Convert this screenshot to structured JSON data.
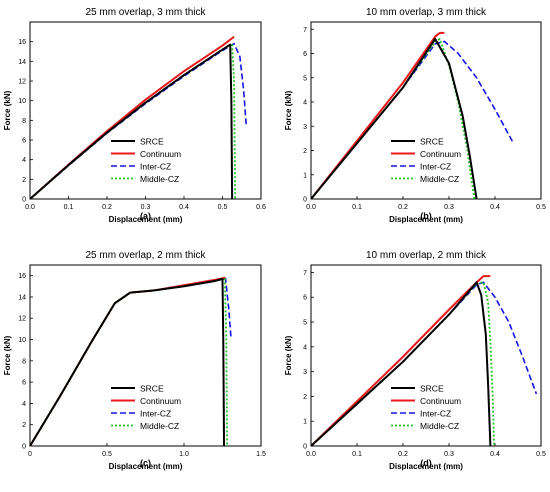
{
  "figure": {
    "panel_labels": [
      "(a)",
      "(b)",
      "(c)",
      "(d)"
    ]
  },
  "legend_colors": {
    "SRCE": "#000000",
    "Continuum": "#e8191b",
    "Inter-CZ": "#1414e6",
    "Middle-CZ": "#22c322"
  },
  "chart_data": [
    {
      "type": "line",
      "title": "25 mm overlap, 3 mm thick",
      "xlabel": "Displacement (mm)",
      "ylabel": "Force (kN)",
      "xlim": [
        0,
        0.6
      ],
      "ylim": [
        0,
        18
      ],
      "xticks": [
        "0.0",
        "0.1",
        "0.2",
        "0.3",
        "0.4",
        "0.5",
        "0.6"
      ],
      "yticks": [
        "0",
        "2",
        "4",
        "6",
        "8",
        "10",
        "12",
        "14",
        "16"
      ],
      "legend_position": "bottom-right",
      "series": [
        {
          "name": "SRCE",
          "style": "solid",
          "points": [
            [
              0,
              0
            ],
            [
              0.1,
              3.45
            ],
            [
              0.2,
              6.75
            ],
            [
              0.3,
              9.8
            ],
            [
              0.4,
              12.6
            ],
            [
              0.5,
              15.2
            ],
            [
              0.52,
              15.7
            ],
            [
              0.523,
              10
            ],
            [
              0.525,
              0
            ]
          ]
        },
        {
          "name": "Continuum",
          "style": "solid",
          "points": [
            [
              0,
              0
            ],
            [
              0.1,
              3.5
            ],
            [
              0.2,
              6.9
            ],
            [
              0.3,
              10.1
            ],
            [
              0.4,
              13.0
            ],
            [
              0.5,
              15.6
            ],
            [
              0.53,
              16.5
            ]
          ]
        },
        {
          "name": "Inter-CZ",
          "style": "dashed",
          "points": [
            [
              0,
              0
            ],
            [
              0.1,
              3.4
            ],
            [
              0.2,
              6.7
            ],
            [
              0.3,
              9.7
            ],
            [
              0.4,
              12.5
            ],
            [
              0.5,
              15.1
            ],
            [
              0.53,
              15.8
            ],
            [
              0.545,
              14.5
            ],
            [
              0.555,
              11
            ],
            [
              0.562,
              7.3
            ]
          ]
        },
        {
          "name": "Middle-CZ",
          "style": "dotted",
          "points": [
            [
              0,
              0
            ],
            [
              0.1,
              3.45
            ],
            [
              0.2,
              6.75
            ],
            [
              0.3,
              9.8
            ],
            [
              0.4,
              12.6
            ],
            [
              0.5,
              15.2
            ],
            [
              0.525,
              15.8
            ],
            [
              0.53,
              12
            ],
            [
              0.533,
              0
            ]
          ]
        }
      ]
    },
    {
      "type": "line",
      "title": "10 mm overlap, 3 mm thick",
      "xlabel": "Displacement (mm)",
      "ylabel": "Force (kN)",
      "xlim": [
        0,
        0.5
      ],
      "ylim": [
        0,
        7.3
      ],
      "xticks": [
        "0.0",
        "0.1",
        "0.2",
        "0.3",
        "0.4",
        "0.5"
      ],
      "yticks": [
        "0",
        "1",
        "2",
        "3",
        "4",
        "5",
        "6",
        "7"
      ],
      "legend_position": "bottom-right",
      "series": [
        {
          "name": "SRCE",
          "style": "solid",
          "points": [
            [
              0,
              0
            ],
            [
              0.1,
              2.3
            ],
            [
              0.2,
              4.6
            ],
            [
              0.27,
              6.6
            ],
            [
              0.3,
              5.6
            ],
            [
              0.33,
              3.4
            ],
            [
              0.345,
              1.8
            ],
            [
              0.36,
              0
            ]
          ]
        },
        {
          "name": "Continuum",
          "style": "solid",
          "points": [
            [
              0,
              0
            ],
            [
              0.1,
              2.4
            ],
            [
              0.2,
              4.8
            ],
            [
              0.27,
              6.7
            ],
            [
              0.28,
              6.85
            ],
            [
              0.29,
              6.85
            ]
          ]
        },
        {
          "name": "Inter-CZ",
          "style": "dashed",
          "points": [
            [
              0,
              0
            ],
            [
              0.1,
              2.3
            ],
            [
              0.2,
              4.6
            ],
            [
              0.27,
              6.4
            ],
            [
              0.29,
              6.5
            ],
            [
              0.32,
              6.0
            ],
            [
              0.36,
              5.0
            ],
            [
              0.4,
              3.7
            ],
            [
              0.44,
              2.3
            ]
          ]
        },
        {
          "name": "Middle-CZ",
          "style": "dotted",
          "points": [
            [
              0,
              0
            ],
            [
              0.1,
              2.3
            ],
            [
              0.2,
              4.6
            ],
            [
              0.27,
              6.5
            ],
            [
              0.28,
              6.6
            ],
            [
              0.3,
              5.5
            ],
            [
              0.32,
              4.0
            ],
            [
              0.34,
              2.0
            ],
            [
              0.355,
              0
            ]
          ]
        }
      ]
    },
    {
      "type": "line",
      "title": "25 mm overlap, 2 mm thick",
      "xlabel": "Displacement (mm)",
      "ylabel": "Force (kN)",
      "xlim": [
        0,
        1.5
      ],
      "ylim": [
        0,
        17
      ],
      "xticks": [
        "0",
        "0.5",
        "1.0",
        "1.5"
      ],
      "yticks": [
        "0",
        "2",
        "4",
        "6",
        "8",
        "10",
        "12",
        "14",
        "16"
      ],
      "legend_position": "bottom-right",
      "series": [
        {
          "name": "SRCE",
          "style": "solid",
          "points": [
            [
              0,
              0
            ],
            [
              0.2,
              4.8
            ],
            [
              0.4,
              9.8
            ],
            [
              0.55,
              13.4
            ],
            [
              0.65,
              14.4
            ],
            [
              0.8,
              14.6
            ],
            [
              1.0,
              15.0
            ],
            [
              1.2,
              15.5
            ],
            [
              1.25,
              15.7
            ],
            [
              1.255,
              10
            ],
            [
              1.26,
              0
            ]
          ]
        },
        {
          "name": "Continuum",
          "style": "solid",
          "points": [
            [
              0,
              0
            ],
            [
              0.2,
              4.8
            ],
            [
              0.4,
              9.8
            ],
            [
              0.55,
              13.4
            ],
            [
              0.65,
              14.4
            ],
            [
              0.8,
              14.6
            ],
            [
              1.0,
              15.1
            ],
            [
              1.2,
              15.6
            ],
            [
              1.27,
              15.8
            ]
          ]
        },
        {
          "name": "Inter-CZ",
          "style": "dashed",
          "points": [
            [
              0,
              0
            ],
            [
              0.2,
              4.8
            ],
            [
              0.4,
              9.8
            ],
            [
              0.55,
              13.4
            ],
            [
              0.65,
              14.4
            ],
            [
              0.8,
              14.6
            ],
            [
              1.0,
              15.0
            ],
            [
              1.2,
              15.5
            ],
            [
              1.27,
              15.7
            ],
            [
              1.29,
              13
            ],
            [
              1.305,
              10.2
            ]
          ]
        },
        {
          "name": "Middle-CZ",
          "style": "dotted",
          "points": [
            [
              0,
              0
            ],
            [
              0.2,
              4.8
            ],
            [
              0.4,
              9.8
            ],
            [
              0.55,
              13.4
            ],
            [
              0.65,
              14.4
            ],
            [
              0.8,
              14.6
            ],
            [
              1.0,
              15.0
            ],
            [
              1.2,
              15.5
            ],
            [
              1.265,
              15.7
            ],
            [
              1.275,
              10
            ],
            [
              1.28,
              0
            ]
          ]
        }
      ]
    },
    {
      "type": "line",
      "title": "10 mm overlap, 2 mm thick",
      "xlabel": "Displacement (mm)",
      "ylabel": "Force (kN)",
      "xlim": [
        0,
        0.5
      ],
      "ylim": [
        0,
        7.3
      ],
      "xticks": [
        "0.0",
        "0.1",
        "0.2",
        "0.3",
        "0.4",
        "0.5"
      ],
      "yticks": [
        "0",
        "1",
        "2",
        "3",
        "4",
        "5",
        "6",
        "7"
      ],
      "legend_position": "bottom-right",
      "series": [
        {
          "name": "SRCE",
          "style": "solid",
          "points": [
            [
              0,
              0
            ],
            [
              0.1,
              1.7
            ],
            [
              0.2,
              3.4
            ],
            [
              0.3,
              5.3
            ],
            [
              0.36,
              6.6
            ],
            [
              0.37,
              6.1
            ],
            [
              0.38,
              4.5
            ],
            [
              0.385,
              2.5
            ],
            [
              0.39,
              0
            ]
          ]
        },
        {
          "name": "Continuum",
          "style": "solid",
          "points": [
            [
              0,
              0
            ],
            [
              0.1,
              1.8
            ],
            [
              0.2,
              3.6
            ],
            [
              0.3,
              5.5
            ],
            [
              0.36,
              6.6
            ],
            [
              0.375,
              6.85
            ],
            [
              0.39,
              6.85
            ]
          ]
        },
        {
          "name": "Inter-CZ",
          "style": "dashed",
          "points": [
            [
              0,
              0
            ],
            [
              0.1,
              1.7
            ],
            [
              0.2,
              3.4
            ],
            [
              0.3,
              5.3
            ],
            [
              0.36,
              6.5
            ],
            [
              0.375,
              6.6
            ],
            [
              0.4,
              6.0
            ],
            [
              0.43,
              5.0
            ],
            [
              0.46,
              3.6
            ],
            [
              0.49,
              2.1
            ]
          ]
        },
        {
          "name": "Middle-CZ",
          "style": "dotted",
          "points": [
            [
              0,
              0
            ],
            [
              0.1,
              1.7
            ],
            [
              0.2,
              3.4
            ],
            [
              0.3,
              5.3
            ],
            [
              0.36,
              6.55
            ],
            [
              0.375,
              6.6
            ],
            [
              0.385,
              5.8
            ],
            [
              0.39,
              4.2
            ],
            [
              0.395,
              2.0
            ],
            [
              0.398,
              0
            ]
          ]
        }
      ]
    }
  ]
}
